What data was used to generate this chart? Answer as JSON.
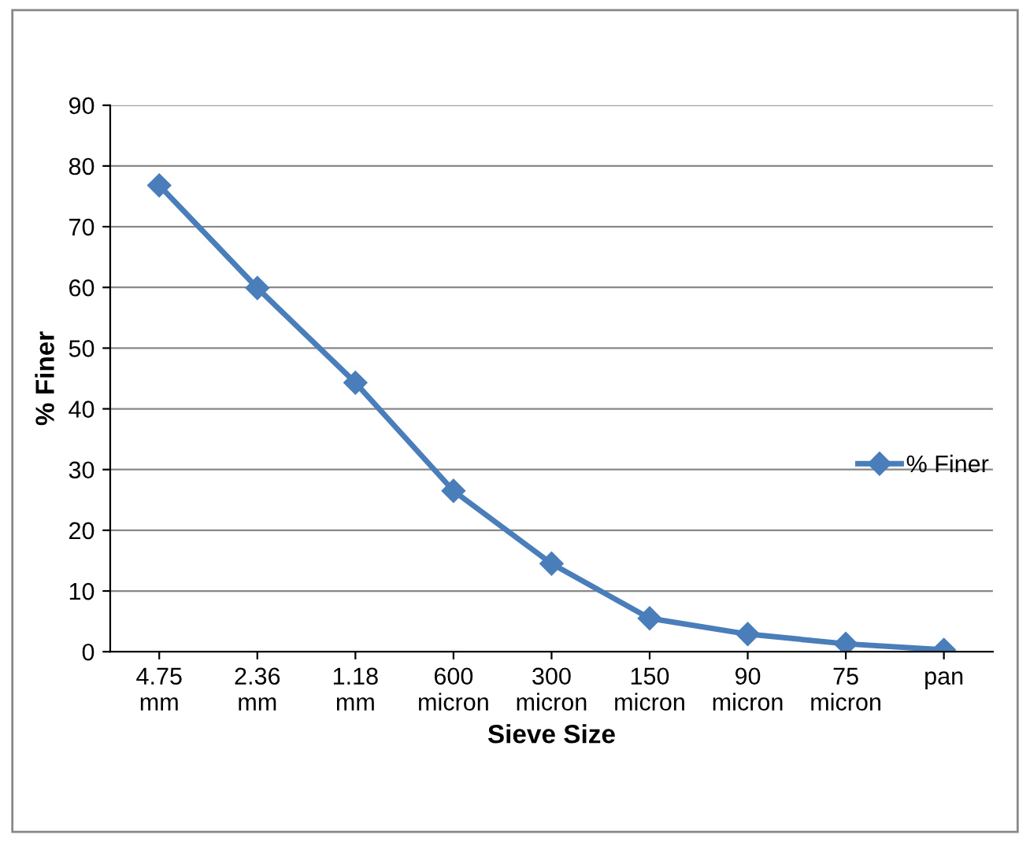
{
  "chart_data": {
    "type": "line",
    "xlabel": "Sieve Size",
    "ylabel": "% Finer",
    "categories": [
      "4.75\nmm",
      "2.36\nmm",
      "1.18\nmm",
      "600\nmicron",
      "300\nmicron",
      "150\nmicron",
      "90\nmicron",
      "75\nmicron",
      "pan"
    ],
    "series": [
      {
        "name": "% Finer",
        "color": "#4a7ebb",
        "values": [
          76.8,
          59.9,
          44.3,
          26.5,
          14.5,
          5.5,
          2.9,
          1.3,
          0.3
        ]
      }
    ],
    "ylim": [
      0,
      90
    ],
    "yticks": [
      0,
      10,
      20,
      30,
      40,
      50,
      60,
      70,
      80,
      90
    ],
    "grid": "y",
    "legend": "right",
    "marker": "diamond",
    "line_style": "solid"
  }
}
